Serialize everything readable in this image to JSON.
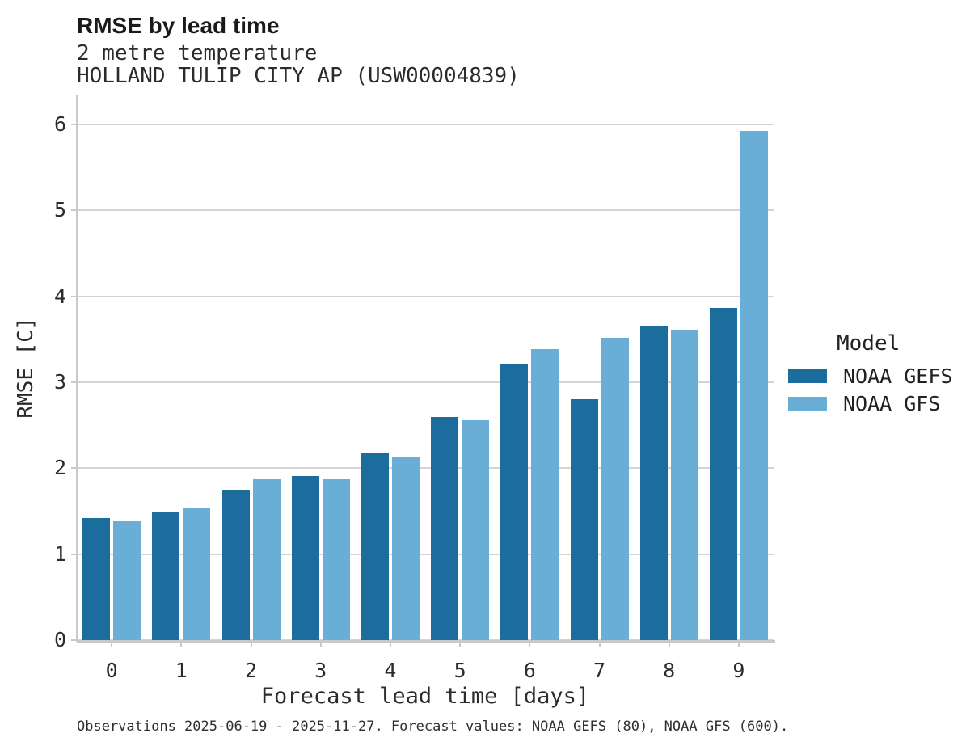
{
  "title": "RMSE by lead time",
  "subtitle1": "2 metre temperature",
  "subtitle2": "HOLLAND TULIP CITY AP (USW00004839)",
  "caption": "Observations 2025-06-19 - 2025-11-27. Forecast values: NOAA GEFS (80), NOAA GFS (600).",
  "legend": {
    "title": "Model",
    "items": [
      {
        "label": "NOAA GEFS",
        "color": "#1c6d9e"
      },
      {
        "label": "NOAA GFS",
        "color": "#69aed7"
      }
    ]
  },
  "colors": {
    "gefs": "#1c6d9e",
    "gfs": "#69aed7",
    "gridline": "#d4d4d4",
    "axis": "#c9c9c9"
  },
  "chart_data": {
    "type": "bar",
    "title": "RMSE by lead time",
    "subtitle": "2 metre temperature — HOLLAND TULIP CITY AP (USW00004839)",
    "xlabel": "Forecast lead time [days]",
    "ylabel": "RMSE [C]",
    "categories": [
      "0",
      "1",
      "2",
      "3",
      "4",
      "5",
      "6",
      "7",
      "8",
      "9"
    ],
    "series": [
      {
        "name": "NOAA GEFS",
        "color": "#1c6d9e",
        "values": [
          1.42,
          1.5,
          1.75,
          1.91,
          2.17,
          2.6,
          3.22,
          2.8,
          3.66,
          3.87
        ]
      },
      {
        "name": "NOAA GFS",
        "color": "#69aed7",
        "values": [
          1.38,
          1.54,
          1.87,
          1.87,
          2.13,
          2.56,
          3.39,
          3.52,
          3.61,
          5.93
        ]
      }
    ],
    "ylim": [
      0,
      6.34
    ],
    "yticks": [
      0,
      1,
      2,
      3,
      4,
      5,
      6
    ],
    "grid": true,
    "legend_position": "right",
    "legend_title": "Model"
  }
}
